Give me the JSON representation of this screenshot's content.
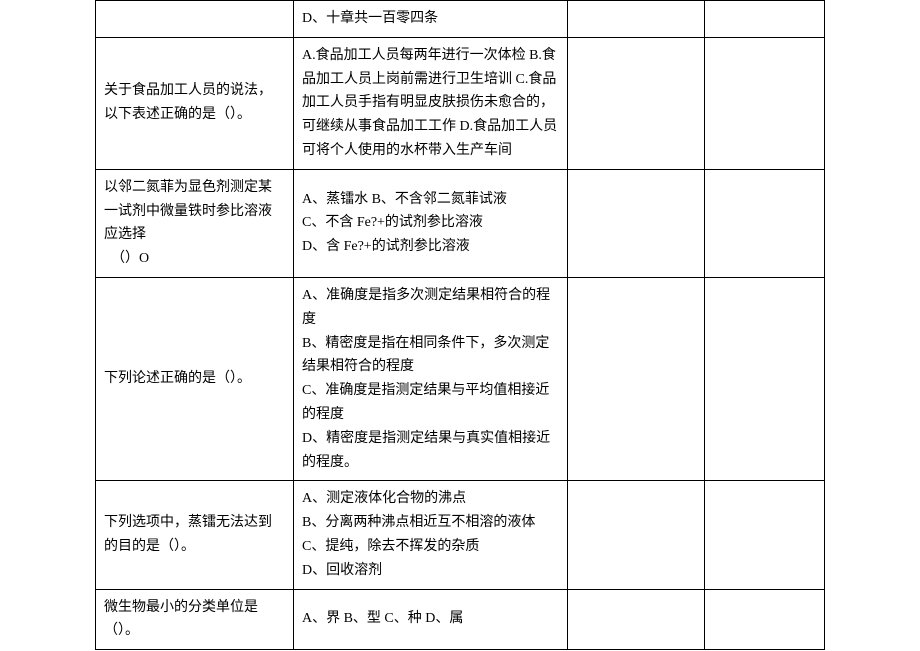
{
  "table": {
    "rows": [
      {
        "question": "",
        "options": "D、十章共一百零四条"
      },
      {
        "question": "关于食品加工人员的说法，以下表述正确的是（）。",
        "options": "A.食品加工人员每两年进行一次体检 B.食品加工人员上岗前需进行卫生培训 C.食品加工人员手指有明显皮肤损伤未愈合的，可继续从事食品加工工作 D.食品加工人员可将个人使用的水杯带入生产车间"
      },
      {
        "question": "以邻二氮菲为显色剂测定某一试剂中微量铁时参比溶液应选择\n　（）O",
        "options": "A、蒸镭水 B、不含邻二氮菲试液\nC、不含 Fe?+的试剂参比溶液\nD、含 Fe?+的试剂参比溶液"
      },
      {
        "question": "下列论述正确的是（）。",
        "options": "A、准确度是指多次测定结果相符合的程度\nB、精密度是指在相同条件下，多次测定结果相符合的程度\nC、准确度是指测定结果与平均值相接近的程度\nD、精密度是指测定结果与真实值相接近的程度。"
      },
      {
        "question": "下列选项中，蒸镭无法达到的目的是（）。",
        "options": "A、测定液体化合物的沸点\nB、分离两种沸点相近互不相溶的液体\nC、提纯，除去不挥发的杂质\nD、回收溶剂"
      },
      {
        "question": "微生物最小的分类单位是（）。",
        "options": "A、界 B、型 C、种 D、属"
      }
    ]
  }
}
